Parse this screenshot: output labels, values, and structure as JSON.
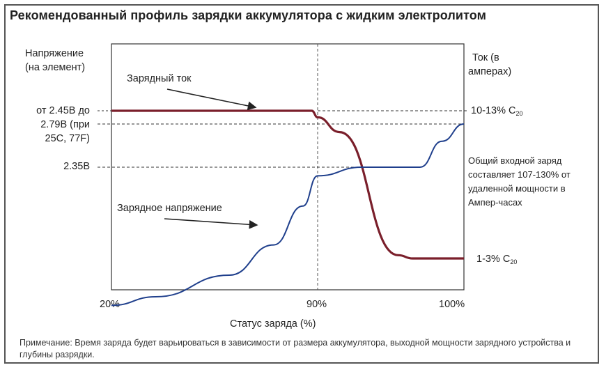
{
  "chart_data": {
    "type": "line",
    "title": "Рекомендованный профиль зарядки аккумулятора с жидким электролитом",
    "xlabel": "Статус заряда (%)",
    "ylabel_left": [
      "Напряжение",
      "(на элемент)"
    ],
    "ylabel_right": [
      "Ток (в",
      "амперах)"
    ],
    "x_ticks": [
      "20%",
      "90%",
      "100%"
    ],
    "x_range": [
      20,
      100
    ],
    "left_ticks": {
      "high": [
        "от 2.45В до",
        "2.79В (при",
        "25C, 77F)"
      ],
      "mid": "2.35В"
    },
    "right_ticks": {
      "high_text": "10-13% C",
      "high_sub": "20",
      "low_text": "1-3% C",
      "low_sub": "20"
    },
    "annotation_right": [
      "Общий входной заряд",
      "составляет 107-130% от",
      "удаленной мощности в",
      "Ампер-часах"
    ],
    "vertical_marker_x": 90,
    "series": [
      {
        "name": "Зарядный ток",
        "color": "#7a1f2b",
        "axis": "right",
        "points": [
          [
            20,
            10
          ],
          [
            88,
            10
          ],
          [
            90,
            9.6
          ],
          [
            91.5,
            8.7
          ],
          [
            95.5,
            1.2
          ],
          [
            96.5,
            1
          ],
          [
            100,
            1
          ]
        ]
      },
      {
        "name": "Зарядное напряжение",
        "color": "#1f3f8c",
        "axis": "left",
        "points": [
          [
            20,
            2.03
          ],
          [
            35,
            2.05
          ],
          [
            60,
            2.1
          ],
          [
            75,
            2.17
          ],
          [
            85,
            2.26
          ],
          [
            90,
            2.33
          ],
          [
            93,
            2.35
          ],
          [
            97,
            2.35
          ],
          [
            98.5,
            2.41
          ],
          [
            100,
            2.45
          ]
        ]
      }
    ]
  }
}
